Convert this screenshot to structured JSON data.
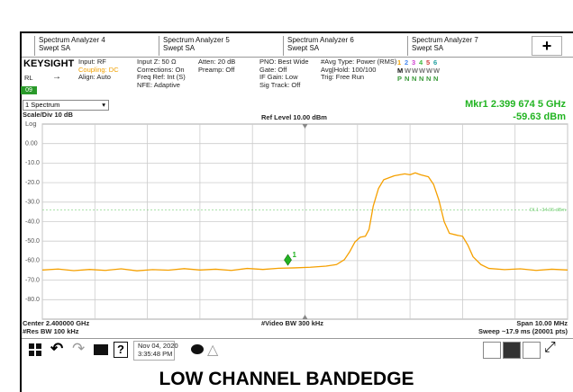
{
  "tabs": [
    {
      "title": "Spectrum Analyzer 4",
      "mode": "Swept SA"
    },
    {
      "title": "Spectrum Analyzer 5",
      "mode": "Swept SA"
    },
    {
      "title": "Spectrum Analyzer 6",
      "mode": "Swept SA"
    },
    {
      "title": "Spectrum Analyzer 7",
      "mode": "Swept SA"
    }
  ],
  "add_tab": "+",
  "header": {
    "logo": "KEYSIGHT",
    "rl": "RL",
    "badge": "09",
    "columns": [
      [
        "Input: RF",
        "Coupling: DC",
        "Align: Auto"
      ],
      [
        "Input Z: 50 Ω",
        "Corrections: On",
        "Freq Ref: Int (S)",
        "NFE: Adaptive"
      ],
      [
        "Atten: 20 dB",
        "Preamp: Off"
      ],
      [
        "PNO: Best Wide",
        "Gate: Off",
        "IF Gain: Low",
        "Sig Track: Off"
      ],
      [
        "#Avg Type: Power (RMS)",
        "Avg|Hold: 100/100",
        "Trig: Free Run"
      ]
    ],
    "trace_rows": [
      [
        "1",
        "2",
        "3",
        "4",
        "5",
        "6"
      ],
      [
        "M",
        "W",
        "W",
        "W",
        "W",
        "W"
      ],
      [
        "P",
        "N",
        "N",
        "N",
        "N",
        "N"
      ]
    ]
  },
  "window_select": "1 Spectrum",
  "marker_readout": {
    "frequency": "Mkr1  2.399 674 5 GHz",
    "amplitude": "-59.63 dBm"
  },
  "scale": "Scale/Div 10 dB",
  "ref_level": "Ref Level 10.00 dBm",
  "scale_type": "Log",
  "footer": {
    "center": "Center 2.400000 GHz",
    "res_bw": "#Res BW 100 kHz",
    "video_bw": "#Video BW 300 kHz",
    "span": "Span 10.00 MHz",
    "sweep": "Sweep ~17.9 ms (20001 pts)"
  },
  "taskbar": {
    "date": "Nov 04, 2020",
    "time": "3:35:48 PM"
  },
  "caption": "LOW CHANNEL BANDEDGE",
  "chart_data": {
    "type": "line",
    "x": [
      2395.0,
      2395.3,
      2395.6,
      2395.9,
      2396.2,
      2396.5,
      2396.8,
      2397.1,
      2397.4,
      2397.7,
      2398.0,
      2398.3,
      2398.6,
      2398.9,
      2399.2,
      2399.5,
      2399.8,
      2400.1,
      2400.4,
      2400.6,
      2400.75,
      2400.85,
      2400.95,
      2401.05,
      2401.15,
      2401.22,
      2401.3,
      2401.4,
      2401.5,
      2401.7,
      2401.9,
      2402.0,
      2402.1,
      2402.2,
      2402.35,
      2402.45,
      2402.55,
      2402.65,
      2402.75,
      2402.9,
      2403.0,
      2403.1,
      2403.2,
      2403.35,
      2403.5,
      2403.8,
      2404.1,
      2404.4,
      2404.7,
      2405.0
    ],
    "series": [
      {
        "name": "Trace 1",
        "color": "#f5a000",
        "values": [
          -64.8,
          -64.3,
          -65.1,
          -64.5,
          -65.0,
          -64.2,
          -65.2,
          -64.6,
          -64.9,
          -64.1,
          -64.8,
          -64.4,
          -65.0,
          -64.0,
          -64.5,
          -63.9,
          -63.7,
          -63.4,
          -62.8,
          -62.0,
          -59.5,
          -55.5,
          -50.5,
          -48.0,
          -47.5,
          -44.0,
          -32.0,
          -23.0,
          -18.5,
          -16.5,
          -15.5,
          -16.0,
          -15.0,
          -16.0,
          -17.0,
          -21.0,
          -29.0,
          -40.0,
          -46.0,
          -47.0,
          -47.5,
          -52.0,
          -58.0,
          -62.0,
          -64.0,
          -64.6,
          -64.2,
          -65.0,
          -64.4,
          -64.8
        ]
      }
    ],
    "xlim": [
      2395,
      2405
    ],
    "xticks": [
      2395,
      2396,
      2397,
      2398,
      2399,
      2400,
      2401,
      2402,
      2403,
      2404,
      2405
    ],
    "ylim": [
      -90,
      10
    ],
    "yticks": [
      {
        "value": 0,
        "label": "0.00"
      },
      {
        "value": -10,
        "label": "-10.0"
      },
      {
        "value": -20,
        "label": "-20.0"
      },
      {
        "value": -30,
        "label": "-30.0"
      },
      {
        "value": -40,
        "label": "-40.0"
      },
      {
        "value": -50,
        "label": "-50.0"
      },
      {
        "value": -60,
        "label": "-60.0"
      },
      {
        "value": -70,
        "label": "-70.0"
      },
      {
        "value": -80,
        "label": "-80.0"
      }
    ],
    "grid": true,
    "marker": {
      "x": 2399.6745,
      "y": -59.63,
      "label": "1",
      "color": "#22b422"
    },
    "display_line": {
      "value": -34.05,
      "label": "DL1 -34.05 dBm",
      "color": "#7ad07a"
    }
  }
}
